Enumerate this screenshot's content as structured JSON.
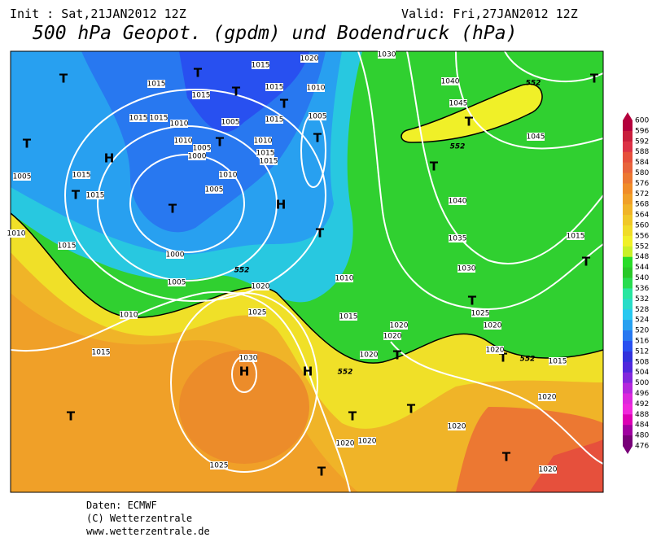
{
  "header": {
    "init": "Init : Sat,21JAN2012 12Z",
    "valid": "Valid: Fri,27JAN2012 12Z",
    "title": "500 hPa Geopot. (gpdm) und Bodendruck (hPa)"
  },
  "colorbar": {
    "labels": [
      600,
      596,
      592,
      588,
      584,
      580,
      576,
      572,
      568,
      564,
      560,
      556,
      552,
      548,
      544,
      540,
      536,
      532,
      528,
      524,
      520,
      516,
      512,
      508,
      504,
      500,
      496,
      492,
      488,
      484,
      480,
      476
    ],
    "colors": [
      "#b4003c",
      "#c81e3c",
      "#dc3246",
      "#e6503c",
      "#e8643c",
      "#ec7832",
      "#f08c28",
      "#f0a028",
      "#f0b428",
      "#f0c828",
      "#f0dc28",
      "#f0f028",
      "#c8f028",
      "#28dc28",
      "#28c828",
      "#28dc50",
      "#28e6a0",
      "#28dcc8",
      "#28c8f0",
      "#28a0f0",
      "#2878f0",
      "#2850f0",
      "#3232dc",
      "#5028dc",
      "#8228dc",
      "#b428dc",
      "#dc28dc",
      "#f028dc",
      "#dc00b4",
      "#a000a0",
      "#780078"
    ]
  },
  "map": {
    "centers": [
      "T",
      "T",
      "T",
      "T",
      "T",
      "T",
      "T",
      "T",
      "H",
      "T",
      "T",
      "H",
      "T",
      "T",
      "T",
      "T",
      "T",
      "T",
      "T",
      "H",
      "H",
      "T",
      "T",
      "T",
      "T",
      "T"
    ],
    "isobars": [
      1015,
      1020,
      1030,
      1015,
      1015,
      1015,
      1010,
      1040,
      1045,
      1015,
      1015,
      1010,
      1005,
      1005,
      1015,
      1010,
      1005,
      1010,
      1015,
      1015,
      1000,
      1045,
      1005,
      1015,
      1015,
      1010,
      1005,
      1040,
      1010,
      1015,
      1035,
      1015,
      1000,
      1030,
      1005,
      1020,
      1010,
      1010,
      1025,
      1015,
      1025,
      1020,
      1020,
      1020,
      1015,
      1030,
      1020,
      1020,
      1015,
      1020,
      1020,
      1020,
      1020,
      1025,
      1020
    ],
    "geopot": [
      552,
      552,
      552,
      552,
      552
    ]
  },
  "footer": {
    "source": "Daten: ECMWF",
    "copyright": "(C) Wetterzentrale",
    "url": "www.wetterzentrale.de"
  }
}
